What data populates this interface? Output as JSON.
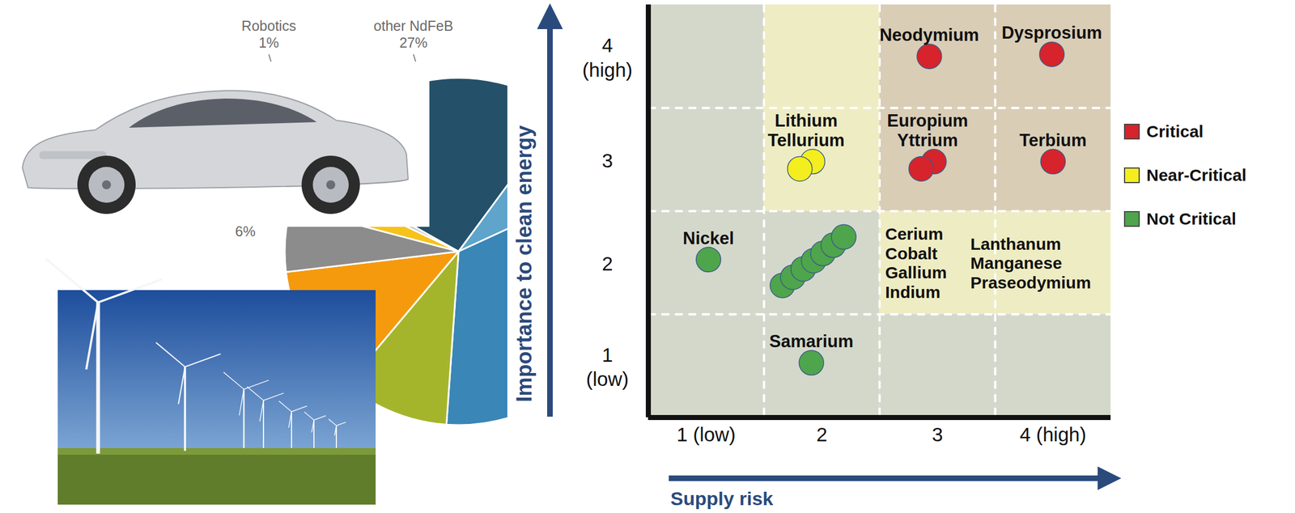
{
  "chart_data": [
    {
      "type": "pie",
      "labels": [
        "other NdFeB",
        null,
        null,
        null,
        null,
        null,
        null,
        "Robotics"
      ],
      "values": [
        27,
        8,
        33,
        10,
        12,
        6,
        3,
        1
      ],
      "value_labels": [
        "27%",
        null,
        null,
        null,
        null,
        "6%",
        null,
        "1%"
      ],
      "colors": [
        "#245069",
        "#5ea4cb",
        "#3a86b6",
        "#a5b52b",
        "#f59a0d",
        "#8c8c8c",
        "#f6c21c",
        "#c9c9c9"
      ],
      "data_labels": true
    },
    {
      "type": "scatter",
      "xlabel": "Supply risk",
      "ylabel": "Importance to clean energy",
      "xlim": [
        0.5,
        4.5
      ],
      "ylim": [
        0.5,
        4.5
      ],
      "xticks": [
        {
          "value": 1,
          "label": "1 (low)"
        },
        2,
        3,
        {
          "value": 4,
          "label": "4 (high)"
        }
      ],
      "yticks": [
        {
          "value": 1,
          "label": "1 (low)"
        },
        2,
        3,
        {
          "value": 4,
          "label": "4 (high)"
        }
      ],
      "grid": true,
      "legend": "right",
      "series": [
        {
          "name": "Critical",
          "color": "#d7232b",
          "x": [
            2.93,
            3.99,
            2.97,
            2.86,
            4.0
          ],
          "y": [
            4.0,
            4.02,
            2.98,
            2.91,
            2.98
          ],
          "labels": [
            "Neodymium",
            "Dysprosium",
            "Europium",
            "Yttrium",
            "Terbium"
          ]
        },
        {
          "name": "Near-Critical",
          "color": "#f4ee1e",
          "x": [
            1.92,
            1.81
          ],
          "y": [
            2.98,
            2.91
          ],
          "labels": [
            "Lithium",
            "Tellurium"
          ]
        },
        {
          "name": "Not Critical",
          "color": "#4ea54b",
          "x": [
            1.02,
            1.66,
            1.75,
            1.84,
            1.93,
            2.01,
            2.1,
            2.19,
            1.91
          ],
          "y": [
            2.03,
            1.78,
            1.86,
            1.94,
            2.02,
            2.09,
            2.17,
            2.25,
            1.03
          ],
          "labels": [
            "Nickel",
            null,
            null,
            null,
            null,
            null,
            null,
            null,
            "Samarium"
          ]
        }
      ],
      "group_labels": [
        [
          "Cerium",
          "Cobalt",
          "Gallium",
          "Indium"
        ],
        [
          "Lanthanum",
          "Manganese",
          "Praseodymium"
        ]
      ],
      "cells": [
        {
          "x": 1,
          "y": 4,
          "class": "Not Critical"
        },
        {
          "x": 2,
          "y": 4,
          "class": "Near-Critical"
        },
        {
          "x": 3,
          "y": 4,
          "class": "Critical"
        },
        {
          "x": 4,
          "y": 4,
          "class": "Critical"
        },
        {
          "x": 1,
          "y": 3,
          "class": "Not Critical"
        },
        {
          "x": 2,
          "y": 3,
          "class": "Near-Critical"
        },
        {
          "x": 3,
          "y": 3,
          "class": "Critical"
        },
        {
          "x": 4,
          "y": 3,
          "class": "Critical"
        },
        {
          "x": 1,
          "y": 2,
          "class": "Not Critical"
        },
        {
          "x": 2,
          "y": 2,
          "class": "Not Critical"
        },
        {
          "x": 3,
          "y": 2,
          "class": "Near-Critical"
        },
        {
          "x": 4,
          "y": 2,
          "class": "Near-Critical"
        },
        {
          "x": 1,
          "y": 1,
          "class": "Not Critical"
        },
        {
          "x": 2,
          "y": 1,
          "class": "Not Critical"
        },
        {
          "x": 3,
          "y": 1,
          "class": "Not Critical"
        },
        {
          "x": 4,
          "y": 1,
          "class": "Not Critical"
        }
      ]
    }
  ]
}
